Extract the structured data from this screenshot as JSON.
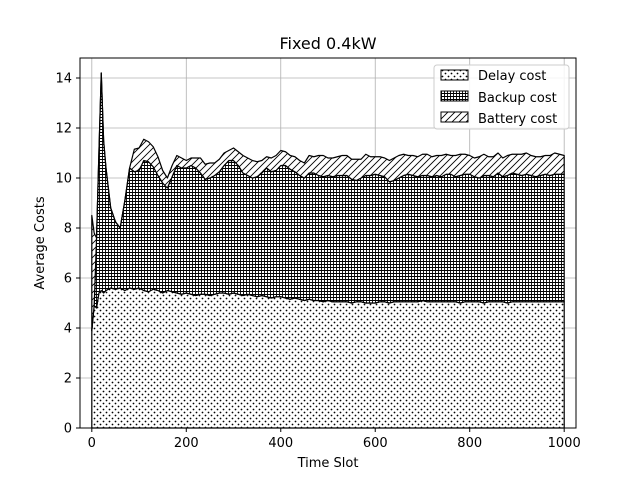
{
  "chart_data": {
    "type": "area",
    "title": "Fixed 0.4kW",
    "xlabel": "Time Slot",
    "ylabel": "Average Costs",
    "xlim": [
      -25,
      1025
    ],
    "ylim": [
      0,
      14.8
    ],
    "xticks": [
      0,
      200,
      400,
      600,
      800,
      1000
    ],
    "yticks": [
      0,
      2,
      4,
      6,
      8,
      10,
      12,
      14
    ],
    "grid": true,
    "legend_position": "top-right",
    "stacked": true,
    "x": [
      0,
      5,
      10,
      15,
      20,
      25,
      30,
      40,
      50,
      60,
      70,
      80,
      90,
      100,
      110,
      120,
      130,
      140,
      150,
      160,
      170,
      180,
      190,
      200,
      210,
      220,
      230,
      240,
      250,
      260,
      270,
      280,
      290,
      300,
      310,
      320,
      330,
      340,
      350,
      360,
      370,
      380,
      390,
      400,
      410,
      420,
      430,
      440,
      450,
      460,
      470,
      480,
      490,
      500,
      510,
      520,
      530,
      540,
      550,
      560,
      570,
      580,
      590,
      600,
      610,
      620,
      630,
      640,
      650,
      660,
      670,
      680,
      690,
      700,
      710,
      720,
      730,
      740,
      750,
      760,
      770,
      780,
      790,
      800,
      810,
      820,
      830,
      840,
      850,
      860,
      870,
      880,
      890,
      900,
      910,
      920,
      930,
      940,
      950,
      960,
      970,
      980,
      990,
      1000
    ],
    "series": [
      {
        "name": "Delay cost",
        "pattern": "dots",
        "values": [
          3.9,
          4.9,
          4.8,
          5.4,
          5.5,
          5.4,
          5.5,
          5.6,
          5.55,
          5.6,
          5.5,
          5.6,
          5.55,
          5.6,
          5.5,
          5.45,
          5.55,
          5.5,
          5.4,
          5.5,
          5.45,
          5.4,
          5.35,
          5.4,
          5.35,
          5.3,
          5.35,
          5.35,
          5.3,
          5.35,
          5.4,
          5.4,
          5.35,
          5.4,
          5.35,
          5.3,
          5.35,
          5.3,
          5.25,
          5.3,
          5.25,
          5.2,
          5.25,
          5.25,
          5.2,
          5.15,
          5.2,
          5.15,
          5.1,
          5.15,
          5.1,
          5.1,
          5.05,
          5.1,
          5.05,
          5.05,
          5.05,
          5.05,
          5.0,
          5.05,
          5.05,
          5.0,
          5.0,
          5.0,
          5.05,
          5.05,
          5.0,
          5.05,
          5.05,
          5.05,
          5.05,
          5.05,
          5.05,
          5.1,
          5.05,
          5.05,
          5.05,
          5.05,
          5.05,
          5.05,
          5.05,
          5.0,
          5.05,
          5.05,
          5.05,
          5.05,
          5.0,
          5.05,
          5.05,
          5.05,
          5.05,
          5.0,
          5.05,
          5.05,
          5.05,
          5.05,
          5.05,
          5.05,
          5.05,
          5.05,
          5.05,
          5.05,
          5.05,
          5.05
        ]
      },
      {
        "name": "Backup cost",
        "pattern": "grid",
        "values": [
          0.0,
          0.0,
          2.8,
          5.6,
          8.7,
          6.1,
          4.9,
          3.2,
          2.7,
          2.4,
          3.6,
          4.8,
          4.7,
          4.7,
          5.2,
          5.2,
          4.9,
          4.6,
          4.4,
          4.1,
          4.6,
          5.1,
          5.05,
          5.0,
          5.15,
          5.1,
          4.85,
          4.6,
          4.7,
          4.75,
          4.85,
          5.1,
          5.35,
          5.3,
          5.15,
          4.9,
          4.75,
          4.7,
          4.8,
          4.9,
          5.15,
          5.05,
          5.05,
          5.25,
          5.3,
          5.2,
          5.05,
          4.95,
          4.9,
          5.05,
          5.1,
          5.0,
          5.0,
          5.0,
          5.0,
          5.05,
          5.05,
          5.05,
          4.95,
          4.85,
          4.95,
          5.1,
          5.1,
          5.15,
          5.05,
          5.0,
          4.85,
          4.85,
          4.95,
          5.05,
          5.1,
          5.05,
          5.0,
          5.0,
          5.05,
          5.0,
          5.05,
          5.0,
          5.1,
          5.1,
          5.0,
          5.1,
          5.1,
          5.1,
          5.0,
          4.95,
          5.1,
          5.05,
          5.0,
          5.15,
          5.0,
          5.1,
          5.15,
          5.1,
          5.05,
          5.1,
          5.05,
          5.0,
          5.05,
          5.1,
          5.05,
          5.1,
          5.1,
          5.1
        ]
      },
      {
        "name": "Battery cost",
        "pattern": "hatch",
        "values": [
          4.6,
          2.9,
          0.0,
          0.0,
          0.0,
          0.0,
          0.0,
          0.0,
          0.0,
          0.0,
          0.0,
          0.0,
          0.9,
          0.9,
          0.85,
          0.8,
          0.8,
          0.75,
          0.5,
          0.4,
          0.45,
          0.4,
          0.4,
          0.3,
          0.3,
          0.4,
          0.6,
          0.6,
          0.6,
          0.5,
          0.5,
          0.5,
          0.4,
          0.5,
          0.55,
          0.7,
          0.7,
          0.7,
          0.6,
          0.5,
          0.45,
          0.55,
          0.6,
          0.6,
          0.55,
          0.55,
          0.6,
          0.6,
          0.6,
          0.7,
          0.65,
          0.8,
          0.85,
          0.7,
          0.75,
          0.75,
          0.8,
          0.8,
          0.8,
          0.85,
          0.75,
          0.85,
          0.75,
          0.7,
          0.75,
          0.75,
          0.85,
          0.9,
          0.9,
          0.85,
          0.75,
          0.8,
          0.8,
          0.85,
          0.85,
          0.8,
          0.8,
          0.85,
          0.8,
          0.75,
          0.85,
          0.85,
          0.8,
          0.75,
          0.75,
          0.85,
          0.85,
          0.75,
          0.8,
          0.8,
          0.75,
          0.8,
          0.75,
          0.8,
          0.85,
          0.85,
          0.8,
          0.8,
          0.75,
          0.75,
          0.8,
          0.85,
          0.8,
          0.75
        ]
      }
    ]
  }
}
